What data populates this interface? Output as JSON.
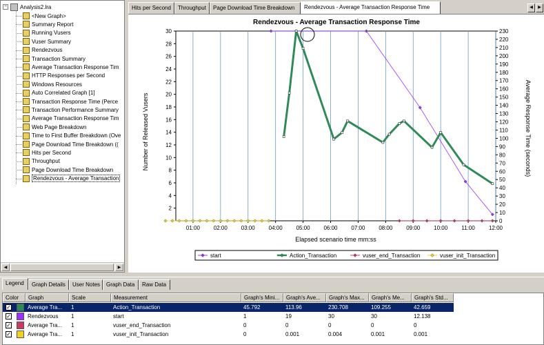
{
  "tree": {
    "root": "Analysis2.lra",
    "items": [
      {
        "label": "<New Graph>"
      },
      {
        "label": "Summary Report"
      },
      {
        "label": "Running Vusers"
      },
      {
        "label": "Vuser Summary"
      },
      {
        "label": "Rendezvous"
      },
      {
        "label": "Transaction Summary"
      },
      {
        "label": "Average Transaction Response Tim"
      },
      {
        "label": "HTTP Responses per Second"
      },
      {
        "label": "Windows Resources"
      },
      {
        "label": "Auto Correlated Graph [1]"
      },
      {
        "label": "Transaction Response Time (Perce"
      },
      {
        "label": "Transaction Performance Summary"
      },
      {
        "label": "Average Transaction Response Tim"
      },
      {
        "label": "Web Page Breakdown"
      },
      {
        "label": "Time to First Buffer Breakdown (Ove"
      },
      {
        "label": "Page Download Time Breakdown (("
      },
      {
        "label": "Hits per Second"
      },
      {
        "label": "Throughput"
      },
      {
        "label": "Page Download Time Breakdown"
      },
      {
        "label": "Rendezvous - Average Transaction"
      }
    ]
  },
  "graph_tabs": [
    "Hits per Second",
    "Throughput",
    "Page Download Time Breakdown",
    "Rendezvous - Average Transaction Response Time"
  ],
  "bottom_tabs": [
    "Legend",
    "Graph Details",
    "User Notes",
    "Graph Data",
    "Raw Data"
  ],
  "legend_table": {
    "headers": [
      "Color",
      "Graph",
      "Scale",
      "Measurement",
      "Graph's Mini...",
      "Graph's Ave...",
      "Graph's Max...",
      "Graph's Me...",
      "Graph's Std..."
    ],
    "rows": [
      {
        "color": "#2e8b57",
        "graph": "Average Tra...",
        "scale": "1",
        "measurement": "Action_Transaction",
        "min": "45.792",
        "avg": "113.96",
        "max": "230.708",
        "median": "109.255",
        "std": "42.659"
      },
      {
        "color": "#9b30ff",
        "graph": "Rendezvous",
        "scale": "1",
        "measurement": "start",
        "min": "1",
        "avg": "19",
        "max": "30",
        "median": "30",
        "std": "12.138"
      },
      {
        "color": "#c83c64",
        "graph": "Average Tra...",
        "scale": "1",
        "measurement": "vuser_end_Transaction",
        "min": "0",
        "avg": "0",
        "max": "0",
        "median": "0",
        "std": "0"
      },
      {
        "color": "#f0d020",
        "graph": "Average Tra...",
        "scale": "1",
        "measurement": "vuser_init_Transaction",
        "min": "0",
        "avg": "0.001",
        "max": "0.004",
        "median": "0.001",
        "std": "0.001"
      }
    ]
  },
  "chart_data": {
    "type": "line",
    "title": "Rendezvous - Average Transaction Response Time",
    "xlabel": "Elapsed scenario time mm:ss",
    "ylabel_left": "Number of Released Vusers",
    "ylabel_right": "Average Response Time (seconds)",
    "x_ticks": [
      "01:00",
      "02:00",
      "03:00",
      "04:00",
      "05:00",
      "06:00",
      "07:00",
      "08:00",
      "09:00",
      "10:00",
      "11:00",
      "12:00"
    ],
    "x_range": [
      0,
      720
    ],
    "y_left_ticks": [
      "2",
      "4",
      "6",
      "8",
      "10",
      "12",
      "14",
      "16",
      "18",
      "20",
      "22",
      "24",
      "26",
      "28",
      "30"
    ],
    "y_left_range": [
      0,
      30
    ],
    "y_right_ticks": [
      "0",
      "10",
      "20",
      "30",
      "40",
      "50",
      "60",
      "70",
      "80",
      "90",
      "100",
      "110",
      "120",
      "130",
      "140",
      "150",
      "160",
      "170",
      "180",
      "190",
      "200",
      "210",
      "220",
      "230"
    ],
    "y_right_range": [
      0,
      230
    ],
    "series": [
      {
        "name": "start",
        "axis": "left",
        "color": "#9b30ff",
        "x": [
          230,
          285,
          438,
          555,
          654,
          713
        ],
        "y": [
          30,
          30,
          30,
          17.9,
          6.2,
          1
        ]
      },
      {
        "name": "Action_Transaction",
        "axis": "right",
        "color": "#2e8b57",
        "x": [
          258,
          270,
          285,
          300,
          367,
          385,
          397,
          474,
          488,
          510,
          520,
          581,
          600,
          650,
          713
        ],
        "y": [
          102,
          155,
          230,
          209,
          99,
          107,
          121,
          95,
          105,
          118,
          121,
          89,
          107,
          68,
          45
        ]
      },
      {
        "name": "vuser_end_Transaction",
        "axis": "right",
        "color": "#c83c64",
        "x": [
          510,
          540,
          570,
          600,
          630,
          660,
          690,
          713
        ],
        "y": [
          0,
          0,
          0,
          0,
          0,
          0,
          0,
          0
        ]
      },
      {
        "name": "vuser_init_Transaction",
        "axis": "right",
        "color": "#f0d020",
        "x": [
          0,
          15,
          30,
          45,
          60,
          75,
          90,
          105,
          120,
          135,
          150,
          165,
          180,
          195,
          210,
          225
        ],
        "y": [
          0,
          0,
          0,
          0,
          0,
          0,
          0,
          0,
          0,
          0,
          0,
          0,
          0,
          0,
          0,
          0
        ]
      }
    ],
    "legend": [
      "start",
      "Action_Transaction",
      "vuser_end_Transaction",
      "vuser_init_Transaction"
    ]
  }
}
